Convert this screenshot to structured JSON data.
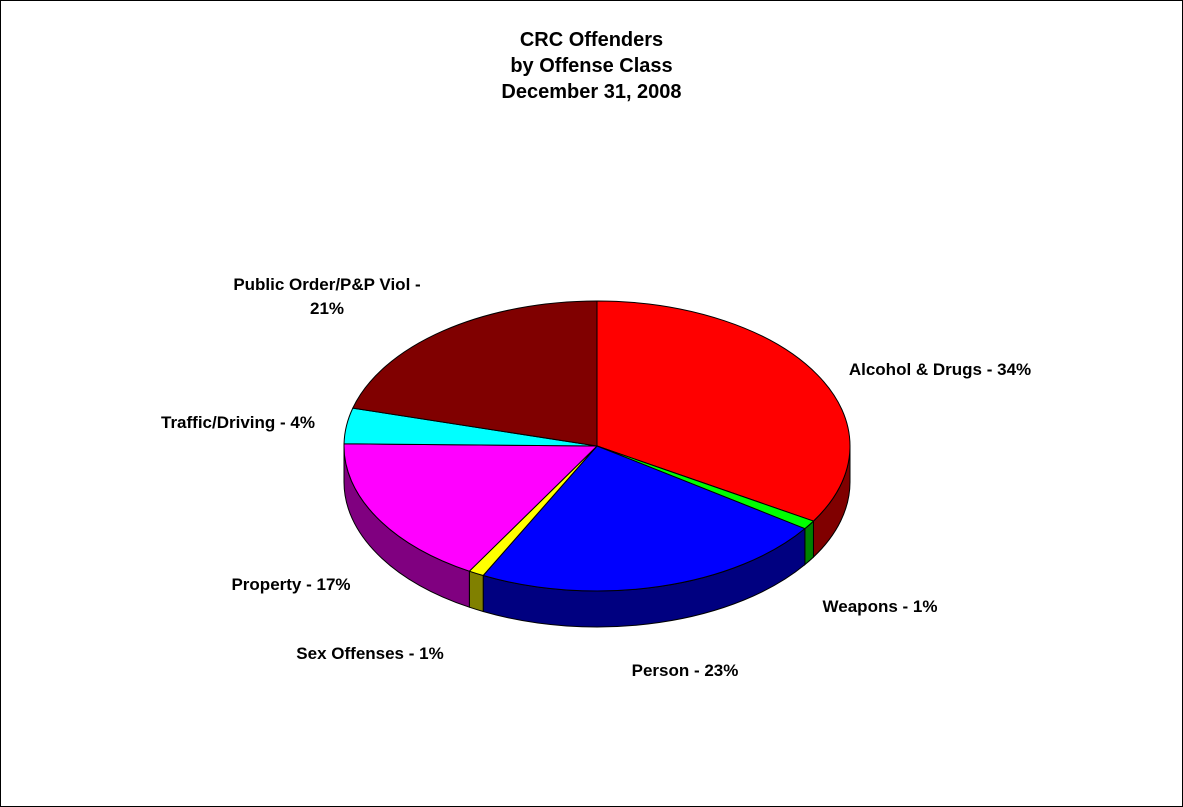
{
  "chart_data": {
    "type": "pie",
    "title": [
      "CRC Offenders",
      "by Offense Class",
      "December 31, 2008"
    ],
    "slices": [
      {
        "label": "Alcohol & Drugs - 34%",
        "label_lines": [
          "Alcohol & Drugs - 34%"
        ],
        "value": 34,
        "color": "#ff0000",
        "side_color": "#800000"
      },
      {
        "label": "Weapons - 1%",
        "label_lines": [
          "Weapons - 1%"
        ],
        "value": 1,
        "color": "#00ff00",
        "side_color": "#008000"
      },
      {
        "label": "Person - 23%",
        "label_lines": [
          "Person  - 23%"
        ],
        "value": 23,
        "color": "#0000ff",
        "side_color": "#000080"
      },
      {
        "label": "Sex Offenses - 1%",
        "label_lines": [
          "Sex Offenses - 1%"
        ],
        "value": 1,
        "color": "#ffff00",
        "side_color": "#808000"
      },
      {
        "label": "Property - 17%",
        "label_lines": [
          "Property - 17%"
        ],
        "value": 17,
        "color": "#ff00ff",
        "side_color": "#800080"
      },
      {
        "label": "Traffic/Driving - 4%",
        "label_lines": [
          "Traffic/Driving - 4%"
        ],
        "value": 4,
        "color": "#00ffff",
        "side_color": "#008080"
      },
      {
        "label": "Public Order/P&P Viol - 21%",
        "label_lines": [
          "Public Order/P&P Viol -",
          "21%"
        ],
        "value": 21,
        "color": "#800000",
        "side_color": "#400000"
      }
    ],
    "legend": "none"
  }
}
